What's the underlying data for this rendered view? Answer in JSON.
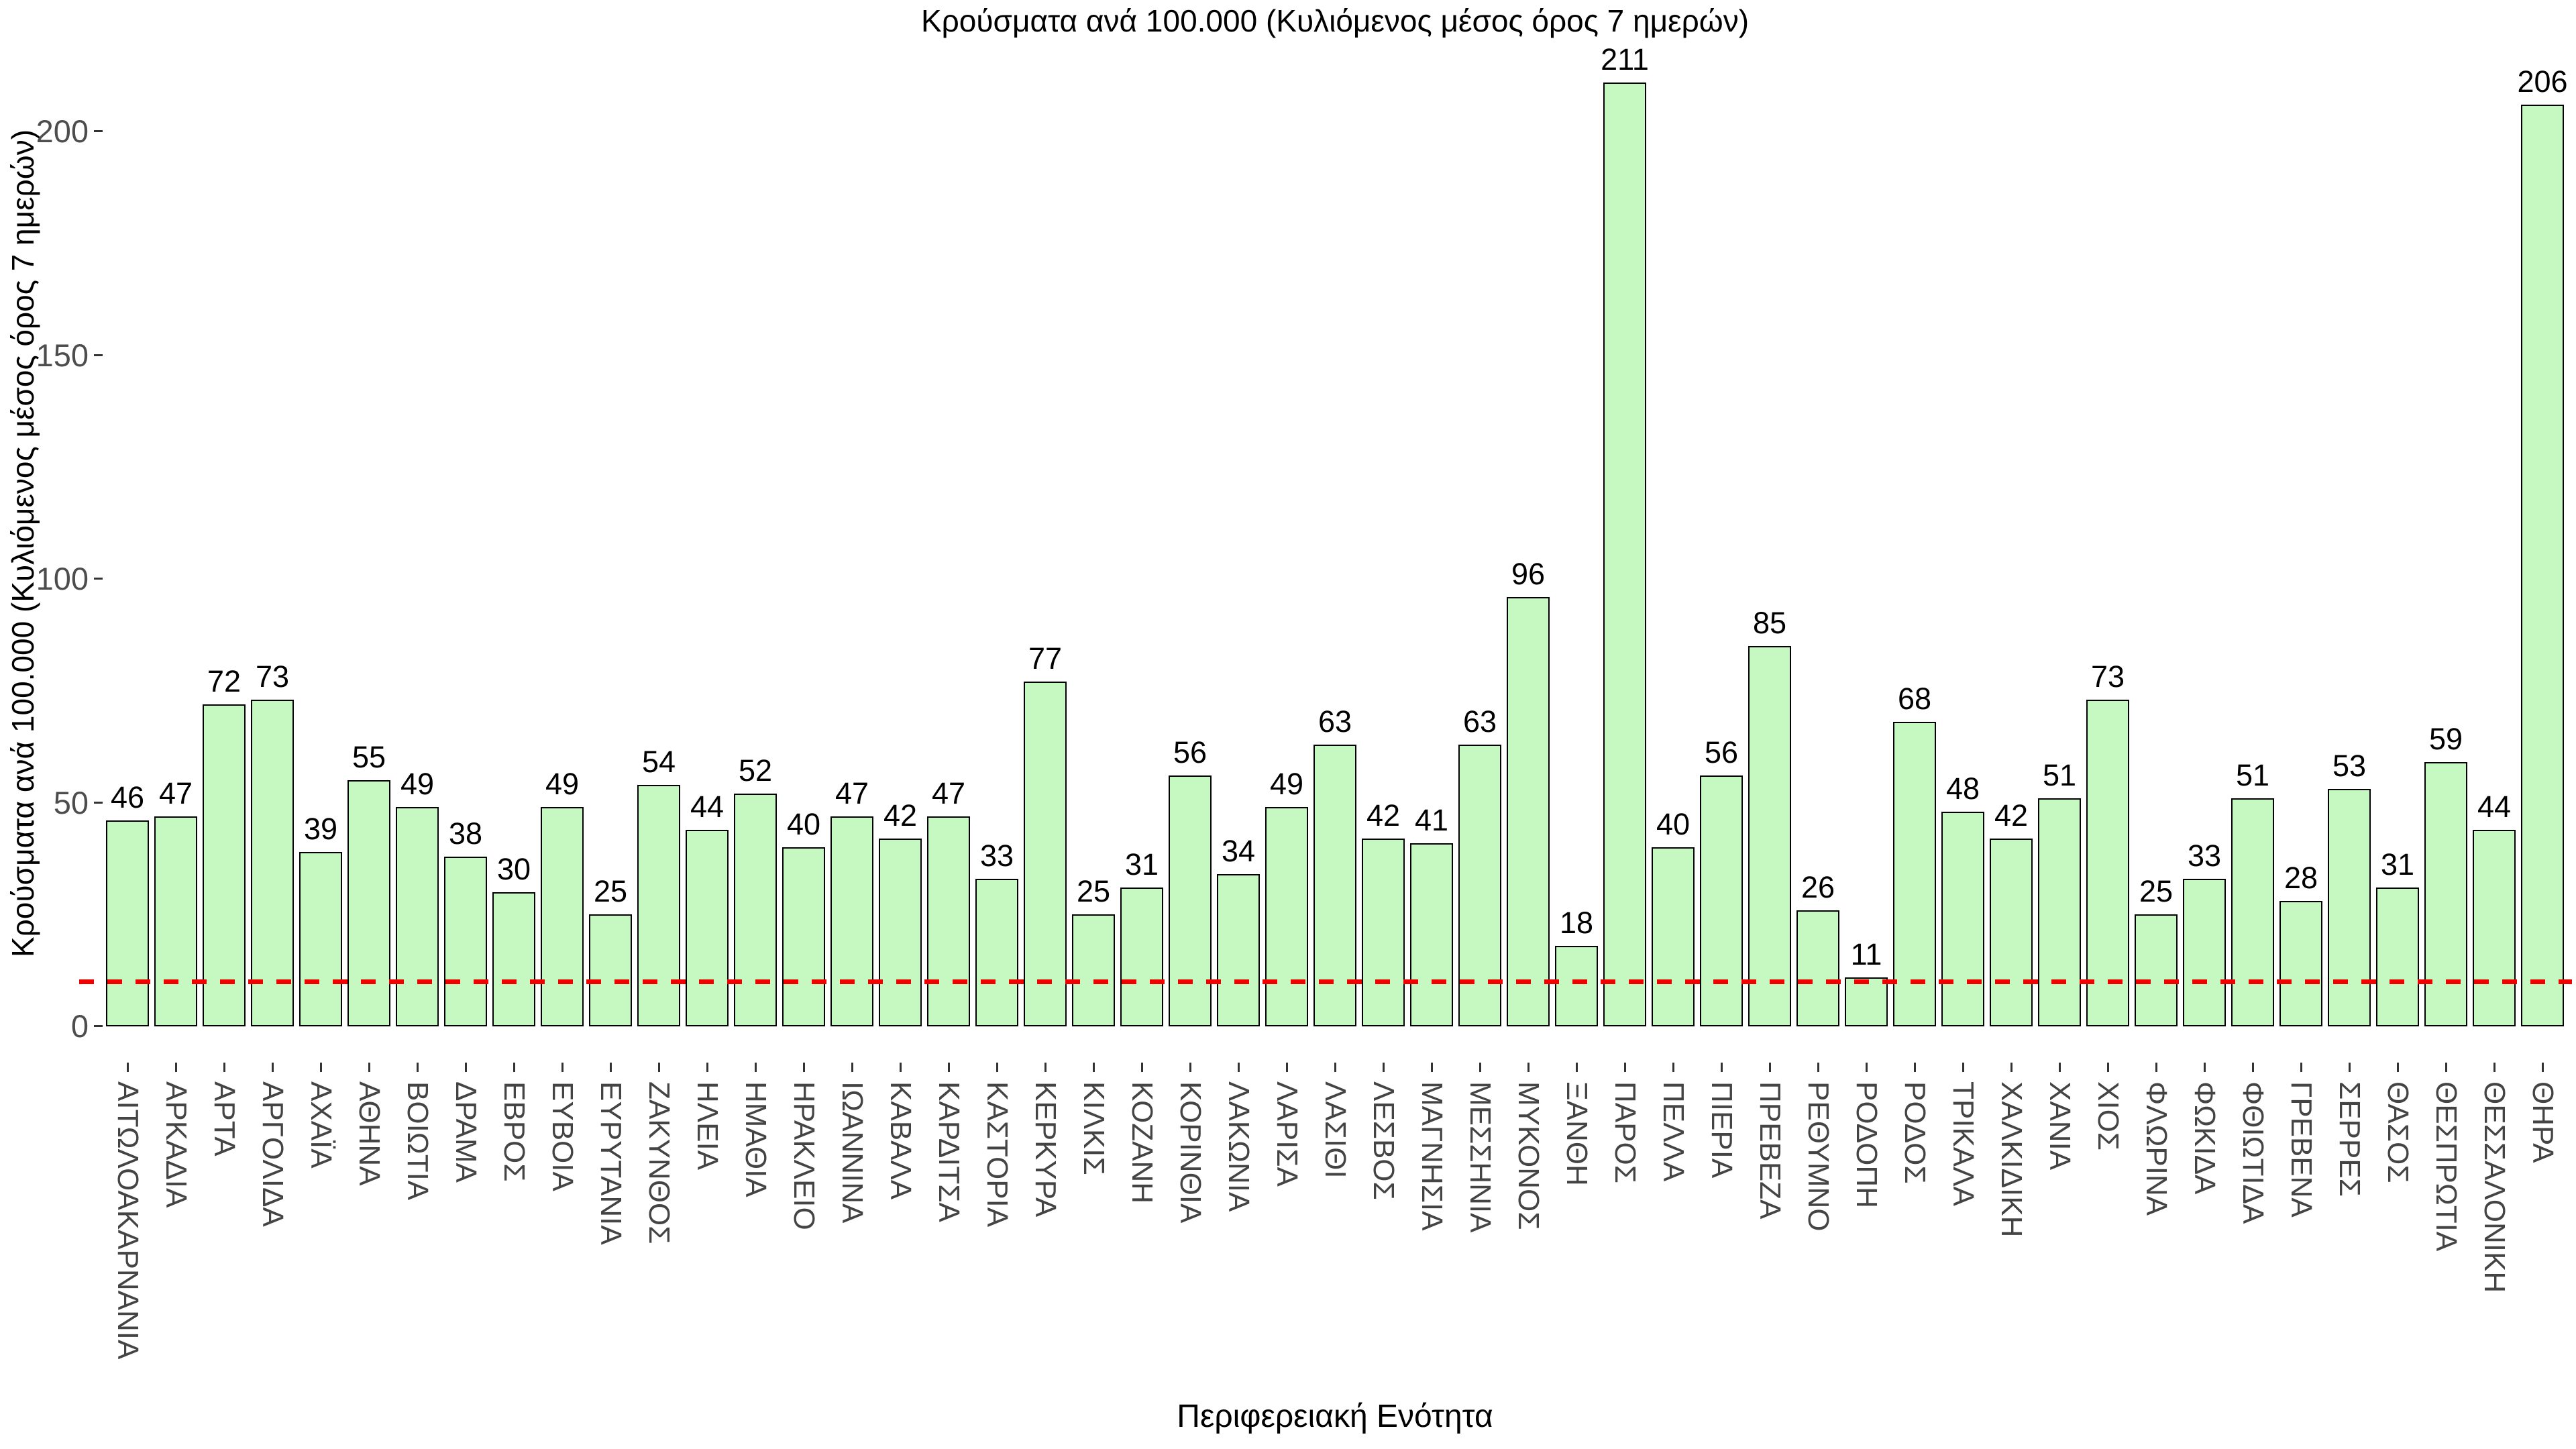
{
  "chart_data": {
    "type": "bar",
    "title": "Κρούσματα ανά 100.000 (Κυλιόμενος μέσος όρος 7 ημερών)",
    "xlabel": "Περιφερειακή Ενότητα",
    "ylabel": "Κρούσματα ανά 100.000 (Κυλιόμενος μέσος όρος 7 ημερών)",
    "categories": [
      "ΑΙΤΩΛΟΑΚΑΡΝΑΝΙΑ",
      "ΑΡΚΑΔΙΑ",
      "ΑΡΤΑ",
      "ΑΡΓΟΛΙΔΑ",
      "ΑΧΑΪΑ",
      "ΑΘΗΝΑ",
      "ΒΟΙΩΤΙΑ",
      "ΔΡΑΜΑ",
      "ΕΒΡΟΣ",
      "ΕΥΒΟΙΑ",
      "ΕΥΡΥΤΑΝΙΑ",
      "ΖΑΚΥΝΘΟΣ",
      "ΗΛΕΙΑ",
      "ΗΜΑΘΙΑ",
      "ΗΡΑΚΛΕΙΟ",
      "ΙΩΑΝΝΙΝΑ",
      "ΚΑΒΑΛΑ",
      "ΚΑΡΔΙΤΣΑ",
      "ΚΑΣΤΟΡΙΑ",
      "ΚΕΡΚΥΡΑ",
      "ΚΙΛΚΙΣ",
      "ΚΟΖΑΝΗ",
      "ΚΟΡΙΝΘΙΑ",
      "ΛΑΚΩΝΙΑ",
      "ΛΑΡΙΣΑ",
      "ΛΑΣΙΘΙ",
      "ΛΕΣΒΟΣ",
      "ΜΑΓΝΗΣΙΑ",
      "ΜΕΣΣΗΝΙΑ",
      "ΜΥΚΟΝΟΣ",
      "ΞΑΝΘΗ",
      "ΠΑΡΟΣ",
      "ΠΕΛΛΑ",
      "ΠΙΕΡΙΑ",
      "ΠΡΕΒΕΖΑ",
      "ΡΕΘΥΜΝΟ",
      "ΡΟΔΟΠΗ",
      "ΡΟΔΟΣ",
      "ΤΡΙΚΑΛΑ",
      "ΧΑΛΚΙΔΙΚΗ",
      "ΧΑΝΙΑ",
      "ΧΙΟΣ",
      "ΦΛΩΡΙΝΑ",
      "ΦΩΚΙΔΑ",
      "ΦΘΙΩΤΙΔΑ",
      "ΓΡΕΒΕΝΑ",
      "ΣΕΡΡΕΣ",
      "ΘΑΣΟΣ",
      "ΘΕΣΠΡΩΤΙΑ",
      "ΘΕΣΣΑΛΟΝΙΚΗ",
      "ΘΗΡΑ"
    ],
    "values": [
      46,
      47,
      72,
      73,
      39,
      55,
      49,
      38,
      30,
      49,
      25,
      54,
      44,
      52,
      40,
      47,
      42,
      47,
      33,
      77,
      25,
      31,
      56,
      34,
      49,
      63,
      42,
      41,
      63,
      96,
      18,
      211,
      40,
      56,
      85,
      26,
      11,
      68,
      48,
      42,
      51,
      73,
      25,
      33,
      51,
      28,
      53,
      31,
      59,
      44,
      206
    ],
    "yticks": [
      0,
      50,
      100,
      150,
      200
    ],
    "ylim": [
      0,
      200
    ],
    "grid": false,
    "legend": null,
    "reference_line": {
      "value": 10,
      "style": "dashed",
      "color": "#f10000"
    },
    "colors": {
      "bar_fill": "#c6f9c1",
      "bar_border": "#000000",
      "value_label": "#000000",
      "axis_text": "#4d4d4d",
      "tick_mark": "#333333",
      "title_text": "#000000",
      "reference_line": "#f10000"
    }
  }
}
